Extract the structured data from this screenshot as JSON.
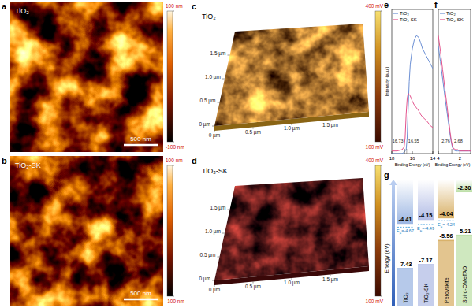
{
  "panel_labels": [
    "a",
    "b",
    "c",
    "d",
    "e",
    "f",
    "g"
  ],
  "afm": [
    {
      "title": "TiO₂",
      "scale_bar": "500 nm",
      "colorbar": {
        "range": [
          -100,
          100
        ],
        "ticks": [
          {
            "value": 100,
            "label": "100 nm"
          },
          {
            "value": -100,
            "label": "-100 nm"
          }
        ]
      }
    },
    {
      "title": "TiO₂-SK",
      "scale_bar": "500 nm",
      "colorbar": {
        "range": [
          -100,
          100
        ],
        "ticks": [
          {
            "value": 100,
            "label": "100 nm"
          },
          {
            "value": -100,
            "label": "-100 nm"
          }
        ]
      }
    }
  ],
  "kpfm": [
    {
      "title": "TiO₂",
      "xlim": [
        0,
        2
      ],
      "ylim": [
        0,
        2
      ],
      "xticks": [
        {
          "value": 0,
          "label": "0 µm"
        },
        {
          "value": 0.5,
          "label": "0.5 µm"
        },
        {
          "value": 1,
          "label": "1.0 µm"
        },
        {
          "value": 1.5,
          "label": "1.5 µm"
        }
      ],
      "yticks": [
        {
          "value": 0,
          "label": "0 µm"
        },
        {
          "value": 0.5,
          "label": "0.5 µm"
        },
        {
          "value": 1,
          "label": "1.0 µm"
        },
        {
          "value": 1.5,
          "label": "1.5 µm"
        }
      ],
      "colorbar": {
        "range": [
          100,
          400
        ],
        "ticks": [
          {
            "value": 400,
            "label": "400 mV"
          },
          {
            "value": 100,
            "label": "100 mV"
          }
        ]
      }
    },
    {
      "title": "TiO₂-SK",
      "xlim": [
        0,
        2
      ],
      "ylim": [
        0,
        2
      ],
      "xticks": [
        {
          "value": 0,
          "label": "0 µm"
        },
        {
          "value": 0.5,
          "label": "0.5 µm"
        },
        {
          "value": 1,
          "label": "1.0 µm"
        },
        {
          "value": 1.5,
          "label": "1.5 µm"
        }
      ],
      "yticks": [
        {
          "value": 0,
          "label": "0 µm"
        },
        {
          "value": 0.5,
          "label": "0.5 µm"
        },
        {
          "value": 1,
          "label": "1.0 µm"
        },
        {
          "value": 1.5,
          "label": "1.5 µm"
        }
      ],
      "colorbar": {
        "range": [
          100,
          400
        ],
        "ticks": [
          {
            "value": 400,
            "label": "400 mV"
          },
          {
            "value": 100,
            "label": "100 mV"
          }
        ]
      }
    }
  ],
  "chart_data": [
    {
      "type": "line",
      "xlabel": "Binding Energy (eV)",
      "ylabel": "Intensity (a.u.)",
      "x": [
        18,
        17.5,
        17,
        16.8,
        16.7,
        16.6,
        16.5,
        16.4,
        16.3,
        16.2,
        16,
        15.8,
        15.6,
        15.4,
        15.2,
        15,
        14.6,
        14.2,
        14
      ],
      "xlim": [
        18,
        14
      ],
      "xticks": [
        18,
        16,
        14
      ],
      "ylim": [
        0,
        1.1
      ],
      "tick_labels": "x",
      "legend": "upper left",
      "series": [
        {
          "name": "TiO₂",
          "color": "#6b8fd4",
          "values": [
            0,
            0,
            0,
            0.01,
            0.02,
            0.03,
            0.12,
            0.35,
            0.55,
            0.68,
            0.8,
            0.87,
            0.9,
            0.89,
            0.85,
            0.8,
            0.74,
            0.68,
            0.65
          ]
        },
        {
          "name": "TiO₂-SK",
          "color": "#e3528c",
          "values": [
            0.02,
            0.02,
            0.03,
            0.05,
            0.12,
            0.3,
            0.42,
            0.46,
            0.45,
            0.44,
            0.4,
            0.37,
            0.35,
            0.33,
            0.3,
            0.28,
            0.25,
            0.21,
            0.2
          ]
        }
      ],
      "annotations": [
        {
          "x": 16.73,
          "label": "16.73"
        },
        {
          "x": 16.55,
          "label": "16.55"
        }
      ]
    },
    {
      "type": "line",
      "xlabel": "Binding Energy (eV)",
      "x": [
        4,
        3.8,
        3.6,
        3.4,
        3.2,
        3,
        2.9,
        2.8,
        2.7,
        2.6,
        2.4,
        2.2,
        2,
        1.6,
        1.2,
        1
      ],
      "xlim": [
        4,
        1
      ],
      "xticks": [
        4,
        2
      ],
      "ylim": [
        0,
        1.1
      ],
      "tick_labels": "x",
      "legend": "upper left",
      "series": [
        {
          "name": "TiO₂",
          "color": "#6b8fd4",
          "values": [
            0.82,
            0.7,
            0.57,
            0.44,
            0.32,
            0.2,
            0.14,
            0.09,
            0.05,
            0.03,
            0.02,
            0.02,
            0.02,
            0.02,
            0.02,
            0.02
          ]
        },
        {
          "name": "TiO₂-SK",
          "color": "#e3528c",
          "values": [
            0.9,
            0.78,
            0.64,
            0.5,
            0.37,
            0.23,
            0.16,
            0.1,
            0.06,
            0.04,
            0.03,
            0.03,
            0.02,
            0.02,
            0.02,
            0.02
          ]
        }
      ],
      "annotations": [
        {
          "x": 2.76,
          "label": "2.76"
        },
        {
          "x": 2.68,
          "label": "2.68"
        }
      ]
    }
  ],
  "energy_diagram": {
    "ylabel": "Energy (eV)",
    "ylim": [
      -9.9,
      -1.5
    ],
    "tick_labels": false,
    "columns": [
      {
        "name": "TiO₂",
        "color": "#9db7e3",
        "cb": {
          "value": -4.41,
          "label": "-4.41"
        },
        "vb": {
          "value": -7.43,
          "label": "-7.43"
        },
        "ef": {
          "value": -4.67,
          "label": "EF=-4.67"
        }
      },
      {
        "name": "TiO₂-SK",
        "color": "#b3bde6",
        "cb": {
          "value": -4.15,
          "label": "-4.15"
        },
        "vb": {
          "value": -7.17,
          "label": "-7.17"
        },
        "ef": {
          "value": -4.49,
          "label": "EF=-4.49"
        }
      },
      {
        "name": "Perovskite",
        "color": "#d9b26a",
        "cb": {
          "value": -4.04,
          "label": "-4.04"
        },
        "vb": {
          "value": -5.56,
          "label": "-5.56"
        },
        "ef": {
          "value": -4.24,
          "label": "EF=-4.24"
        }
      },
      {
        "name": "Spiro-OMeTAD",
        "color": "#bfe0aa",
        "cb": {
          "value": -2.3,
          "label": "-2.30"
        },
        "vb": {
          "value": -5.21,
          "label": "-5.21"
        }
      }
    ]
  }
}
